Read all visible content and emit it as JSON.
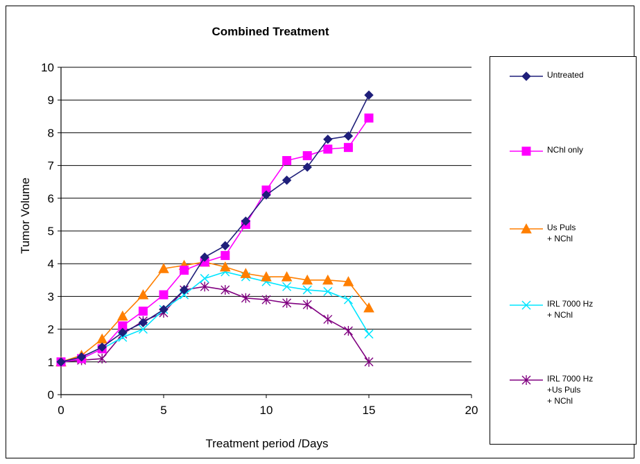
{
  "chart_data": {
    "type": "line",
    "title": "Combined Treatment",
    "xlabel": "Treatment  period /Days",
    "ylabel": "Tumor Volume",
    "xlim": [
      0,
      20
    ],
    "ylim": [
      0,
      10
    ],
    "xticks": [
      "0",
      "5",
      "10",
      "15",
      "20"
    ],
    "yticks": [
      "0",
      "1",
      "2",
      "3",
      "4",
      "5",
      "6",
      "7",
      "8",
      "9",
      "10"
    ],
    "grid": "horizontal",
    "legend_position": "right",
    "series": [
      {
        "name": "Untreated",
        "color": "#1f1f7a",
        "marker": "diamond",
        "x": [
          0,
          1,
          2,
          3,
          4,
          5,
          6,
          7,
          8,
          9,
          10,
          11,
          12,
          13,
          14,
          15
        ],
        "y": [
          1.0,
          1.15,
          1.45,
          1.9,
          2.2,
          2.6,
          3.2,
          4.2,
          4.55,
          5.3,
          6.1,
          6.55,
          6.95,
          7.8,
          7.9,
          9.15
        ]
      },
      {
        "name": "NChl only",
        "color": "#ff00ff",
        "marker": "square",
        "x": [
          0,
          1,
          2,
          3,
          4,
          5,
          6,
          7,
          8,
          9,
          10,
          11,
          12,
          13,
          14,
          15
        ],
        "y": [
          1.0,
          1.1,
          1.4,
          2.1,
          2.55,
          3.05,
          3.8,
          4.05,
          4.25,
          5.2,
          6.25,
          7.15,
          7.3,
          7.5,
          7.55,
          8.45
        ]
      },
      {
        "name": "Us  Puls\n+ NChl",
        "color": "#ff7f00",
        "marker": "triangle",
        "x": [
          0,
          1,
          2,
          3,
          4,
          5,
          6,
          7,
          8,
          9,
          10,
          11,
          12,
          13,
          14,
          15
        ],
        "y": [
          1.0,
          1.2,
          1.7,
          2.4,
          3.05,
          3.85,
          3.95,
          4.05,
          3.9,
          3.7,
          3.6,
          3.6,
          3.5,
          3.5,
          3.45,
          2.65
        ]
      },
      {
        "name": "IRL 7000 Hz\n+ NChl",
        "color": "#00e5ff",
        "marker": "x",
        "x": [
          0,
          1,
          2,
          3,
          4,
          5,
          6,
          7,
          8,
          9,
          10,
          11,
          12,
          13,
          14,
          15
        ],
        "y": [
          1.0,
          1.1,
          1.4,
          1.75,
          2.0,
          2.6,
          3.05,
          3.55,
          3.75,
          3.6,
          3.45,
          3.3,
          3.2,
          3.15,
          2.9,
          1.85
        ]
      },
      {
        "name": "IRL 7000 Hz\n+Us  Puls\n+ NChl",
        "color": "#800080",
        "marker": "asterisk",
        "x": [
          0,
          1,
          2,
          3,
          4,
          5,
          6,
          7,
          8,
          9,
          10,
          11,
          12,
          13,
          14,
          15
        ],
        "y": [
          1.0,
          1.05,
          1.1,
          1.85,
          2.25,
          2.5,
          3.2,
          3.3,
          3.2,
          2.95,
          2.9,
          2.8,
          2.75,
          2.3,
          1.95,
          1.0
        ]
      }
    ]
  }
}
